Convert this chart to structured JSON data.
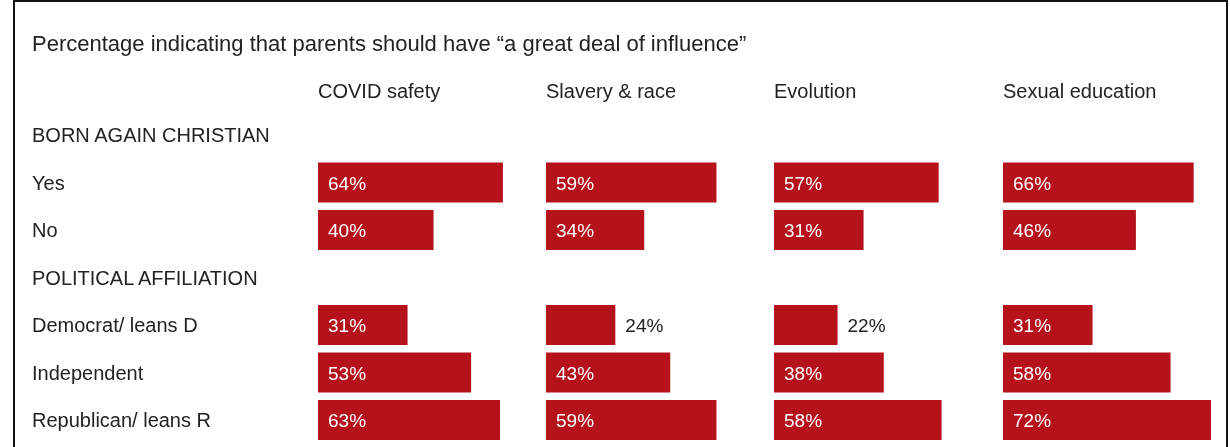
{
  "chart_data": [
    {
      "type": "bar",
      "orientation": "horizontal",
      "title": "Percentage indicating that parents should have “a great deal of influence”",
      "subtitle": "COVID safety",
      "categories": [
        "BORN AGAIN CHRISTIAN",
        "Yes",
        "No",
        "POLITICAL AFFILIATION",
        "Democrat/ leans D",
        "Independent",
        "Republican/ leans R"
      ],
      "values": [
        null,
        64,
        40,
        null,
        31,
        53,
        63
      ],
      "value_labels": [
        null,
        "64%",
        "40%",
        null,
        "31%",
        "53%",
        "63%"
      ],
      "color": "#b5121b",
      "tick_labels": "y"
    },
    {
      "type": "bar",
      "orientation": "horizontal",
      "subtitle": "Slavery & race",
      "categories": [
        null,
        null,
        null,
        null,
        null,
        null,
        null
      ],
      "values": [
        null,
        59,
        34,
        null,
        24,
        43,
        59
      ],
      "value_labels": [
        null,
        "59%",
        "34%",
        null,
        "24%",
        "43%",
        "59%"
      ],
      "color": "#b5121b",
      "tick_labels": false
    },
    {
      "type": "bar",
      "orientation": "horizontal",
      "subtitle": "Evolution",
      "categories": [
        null,
        null,
        null,
        null,
        null,
        null,
        null
      ],
      "values": [
        null,
        57,
        31,
        null,
        22,
        38,
        58
      ],
      "value_labels": [
        null,
        "57%",
        "31%",
        null,
        "22%",
        "38%",
        "58%"
      ],
      "color": "#b5121b",
      "tick_labels": false
    },
    {
      "type": "bar",
      "orientation": "horizontal",
      "subtitle": "Sexual education",
      "categories": [
        null,
        null,
        null,
        null,
        null,
        null,
        null
      ],
      "values": [
        null,
        66,
        46,
        null,
        31,
        58,
        72
      ],
      "value_labels": [
        null,
        "66%",
        "46%",
        null,
        "31%",
        "58%",
        "72%"
      ],
      "color": "#b5121b",
      "tick_labels": false
    }
  ]
}
